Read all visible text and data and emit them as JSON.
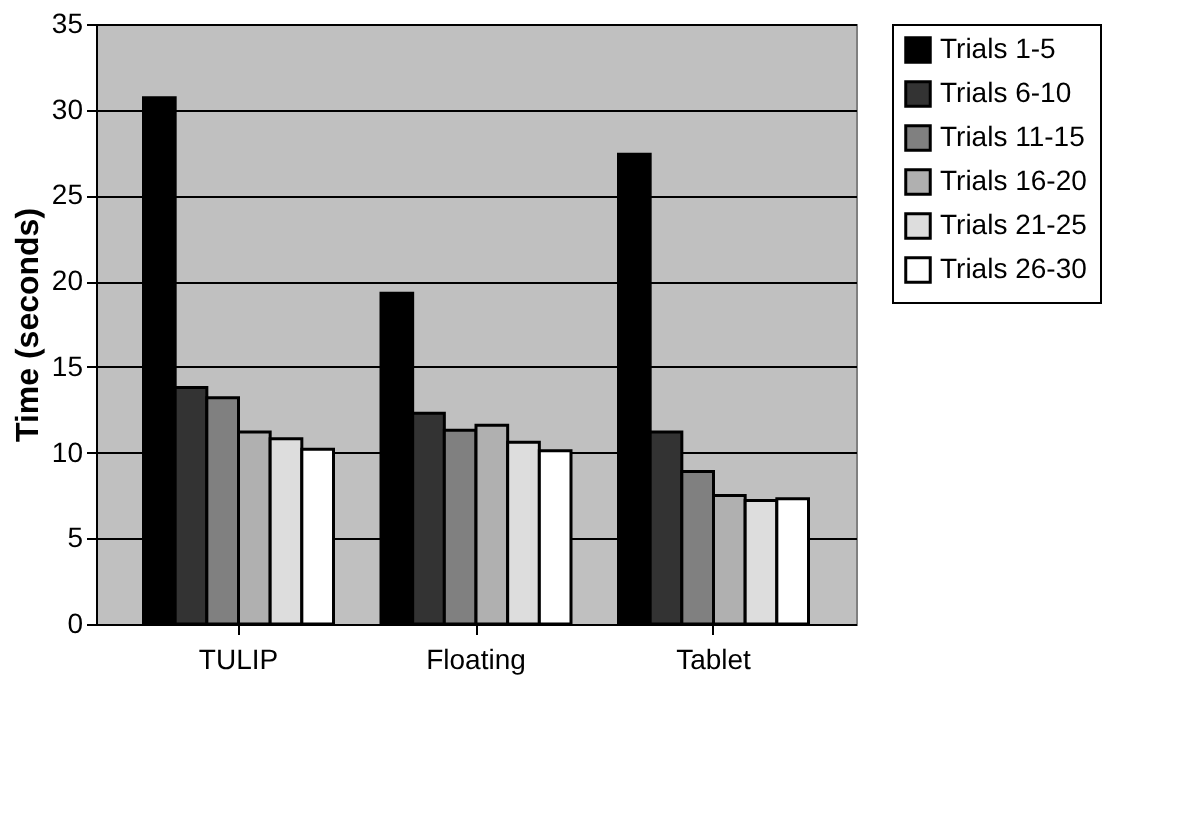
{
  "chart_data": {
    "type": "bar",
    "ylabel": "Time (seconds)",
    "categories": [
      "TULIP",
      "Floating",
      "Tablet"
    ],
    "series": [
      {
        "name": "Trials 1-5",
        "color": "#000000",
        "values": [
          30.7,
          19.3,
          27.4
        ]
      },
      {
        "name": "Trials 6-10",
        "color": "#333333",
        "values": [
          13.8,
          12.3,
          11.2
        ]
      },
      {
        "name": "Trials 11-15",
        "color": "#808080",
        "values": [
          13.2,
          11.3,
          8.9
        ]
      },
      {
        "name": "Trials 16-20",
        "color": "#b0b0b0",
        "values": [
          11.2,
          11.6,
          7.5
        ]
      },
      {
        "name": "Trials 21-25",
        "color": "#dddddd",
        "values": [
          10.8,
          10.6,
          7.2
        ]
      },
      {
        "name": "Trials 26-30",
        "color": "#ffffff",
        "values": [
          10.2,
          10.1,
          7.3
        ]
      }
    ],
    "ylim": [
      0,
      35
    ],
    "yticks": [
      0,
      5,
      10,
      15,
      20,
      25,
      30,
      35
    ],
    "grid": "y",
    "legend": "top right"
  }
}
